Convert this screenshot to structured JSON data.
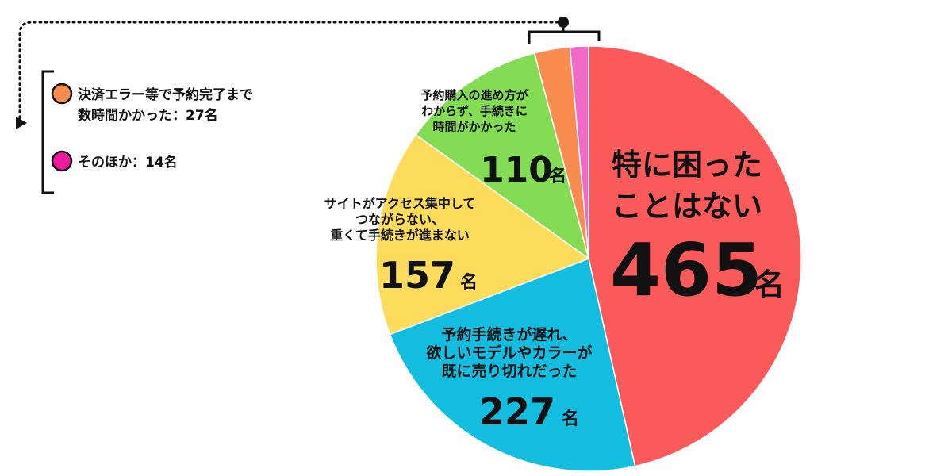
{
  "chart_data": {
    "type": "pie",
    "unit": "名",
    "slices": [
      {
        "label_lines": [
          "特に困った",
          "ことはない"
        ],
        "value": 465,
        "color": "#fb5a5a"
      },
      {
        "label_lines": [
          "予約手続きが遅れ、",
          "欲しいモデルやカラーが",
          "既に売り切れだった"
        ],
        "value": 227,
        "color": "#12bde0"
      },
      {
        "label_lines": [
          "サイトがアクセス集中して",
          "つながらない、",
          "重くて手続きが進まない"
        ],
        "value": 157,
        "color": "#fddc5c"
      },
      {
        "label_lines": [
          "予約購入の進め方が",
          "わからず、手続きに",
          "時間がかかった"
        ],
        "value": 110,
        "color": "#84dc55"
      },
      {
        "label_lines": [
          "決済エラー等で予約完了まで",
          "数時間かかった：27名"
        ],
        "value": 27,
        "color": "#fa8c50"
      },
      {
        "label_lines": [
          "そのほか：14名"
        ],
        "value": 14,
        "color": "#f26ac8"
      }
    ],
    "legend": [
      {
        "lines": [
          "決済エラー等で予約完了まで",
          "数時間かかった：27名"
        ],
        "color": "#fa8c50"
      },
      {
        "lines": [
          "そのほか：14名"
        ],
        "color": "#f01aa0"
      }
    ]
  }
}
